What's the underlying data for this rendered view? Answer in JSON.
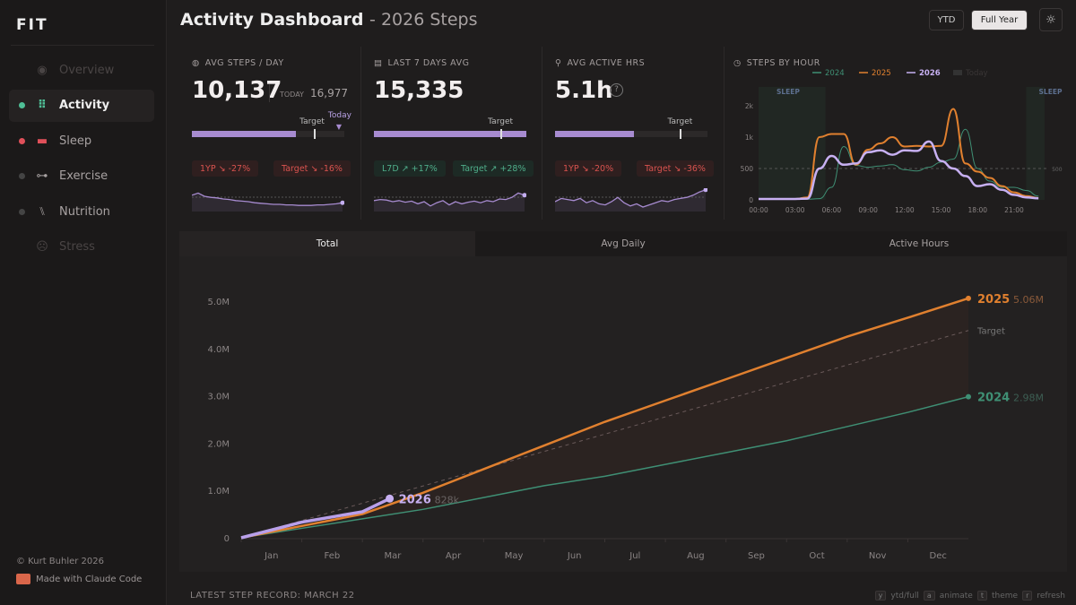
{
  "app": {
    "logo": "FIT",
    "footer_copyright": "© Kurt Buhler 2026",
    "footer_made": "Made with Claude Code"
  },
  "nav": [
    {
      "label": "Overview",
      "icon": "eye-icon",
      "dot": "",
      "state": "dim"
    },
    {
      "label": "Activity",
      "icon": "footprints-icon",
      "dot": "#4fbf96",
      "state": "active"
    },
    {
      "label": "Sleep",
      "icon": "bed-icon",
      "dot": "#e0505a",
      "state": "normal"
    },
    {
      "label": "Exercise",
      "icon": "dumbbell-icon",
      "dot": "#444",
      "state": "normal"
    },
    {
      "label": "Nutrition",
      "icon": "utensils-icon",
      "dot": "#444",
      "state": "normal"
    },
    {
      "label": "Stress",
      "icon": "face-icon",
      "dot": "",
      "state": "dim"
    }
  ],
  "header": {
    "title": "Activity Dashboard",
    "subtitle": "- 2026 Steps",
    "ytd": "YTD",
    "full_year": "Full Year",
    "theme_icon": "sun-icon"
  },
  "colors": {
    "purple": "#a78bd0",
    "orange": "#e0802f",
    "green": "#3f8f74",
    "red": "#d9534f"
  },
  "kpis": [
    {
      "label": "AVG STEPS / DAY",
      "icon": "gauge-icon",
      "value": "10,137",
      "today_label": "TODAY",
      "today_value": "16,977",
      "progress": 0.68,
      "target_pos": 0.8,
      "today_pos": 0.97,
      "target_label": "Target",
      "today_marker": "Today",
      "badges": [
        {
          "text": "1YP ↘ -27%",
          "type": "bad"
        },
        {
          "text": "Target ↘ -16%",
          "type": "bad"
        }
      ],
      "spark": [
        62,
        66,
        60,
        58,
        57,
        55,
        54,
        52,
        51,
        50,
        48,
        47,
        46,
        45,
        45,
        44,
        44,
        43,
        43,
        43,
        44,
        44,
        45,
        46,
        48
      ]
    },
    {
      "label": "LAST 7 DAYS AVG",
      "icon": "calendar-icon",
      "value": "15,335",
      "progress": 1.0,
      "target_pos": 0.83,
      "target_label": "Target",
      "badges": [
        {
          "text": "L7D ↗ +17%",
          "type": "good"
        },
        {
          "text": "Target ↗ +28%",
          "type": "good"
        }
      ],
      "spark": [
        52,
        54,
        53,
        50,
        52,
        49,
        51,
        46,
        50,
        42,
        48,
        52,
        44,
        50,
        46,
        49,
        51,
        48,
        52,
        50,
        55,
        54,
        58,
        66,
        62
      ]
    },
    {
      "label": "AVG ACTIVE HRS",
      "icon": "walking-icon",
      "value": "5.1h",
      "help": "?",
      "progress": 0.52,
      "target_pos": 0.82,
      "target_label": "Target",
      "badges": [
        {
          "text": "1YP ↘ -20%",
          "type": "bad"
        },
        {
          "text": "Target ↘ -36%",
          "type": "bad"
        }
      ],
      "spark": [
        50,
        56,
        54,
        52,
        56,
        48,
        52,
        46,
        44,
        50,
        58,
        48,
        42,
        46,
        40,
        44,
        48,
        52,
        50,
        54,
        56,
        58,
        62,
        68,
        72
      ]
    }
  ],
  "hourly": {
    "title": "STEPS BY HOUR",
    "icon": "clock-icon",
    "legend": [
      "2024",
      "2025",
      "2026",
      "Today"
    ],
    "sleep_label": "SLEEP",
    "x_ticks": [
      "00:00",
      "03:00",
      "06:00",
      "09:00",
      "12:00",
      "15:00",
      "18:00",
      "21:00"
    ],
    "y_ticks": [
      "0",
      "500",
      "1k",
      "2k"
    ],
    "ref_label": "500",
    "series": {
      "2024": [
        10,
        10,
        10,
        10,
        10,
        20,
        200,
        850,
        550,
        520,
        540,
        560,
        480,
        460,
        520,
        600,
        650,
        1250,
        500,
        300,
        200,
        200,
        150,
        60
      ],
      "2025": [
        15,
        15,
        15,
        15,
        40,
        1000,
        1100,
        1100,
        560,
        800,
        900,
        1000,
        850,
        860,
        850,
        860,
        1900,
        580,
        450,
        350,
        220,
        120,
        60,
        30
      ],
      "2026": [
        15,
        15,
        15,
        15,
        20,
        500,
        700,
        560,
        580,
        760,
        790,
        720,
        790,
        780,
        930,
        620,
        500,
        380,
        220,
        250,
        160,
        80,
        40,
        25
      ]
    }
  },
  "tabs": [
    "Total",
    "Avg Daily",
    "Active Hours"
  ],
  "chart_data": {
    "type": "line",
    "y_ticks": [
      "0",
      "1.0M",
      "2.0M",
      "3.0M",
      "4.0M",
      "5.0M"
    ],
    "ylim": [
      0,
      5200000
    ],
    "x_ticks": [
      "Jan",
      "Feb",
      "Mar",
      "Apr",
      "May",
      "Jun",
      "Jul",
      "Aug",
      "Sep",
      "Oct",
      "Nov",
      "Dec"
    ],
    "series": [
      {
        "name": "2025",
        "total_label": "5.06M",
        "month_end": [
          0,
          250000,
          500000,
          950000,
          1450000,
          1950000,
          2450000,
          2900000,
          3350000,
          3800000,
          4250000,
          4650000,
          5060000
        ]
      },
      {
        "name": "2024",
        "total_label": "2.98M",
        "month_end": [
          0,
          200000,
          400000,
          600000,
          850000,
          1100000,
          1300000,
          1550000,
          1800000,
          2050000,
          2350000,
          2650000,
          2980000
        ]
      },
      {
        "name": "2026",
        "total_label": "828k",
        "points": [
          [
            0,
            0
          ],
          [
            1,
            330000
          ],
          [
            2,
            550000
          ],
          [
            2.45,
            828000
          ]
        ]
      },
      {
        "name": "Target",
        "month_end": [
          0,
          4380000
        ],
        "dashed": true
      }
    ]
  },
  "footer": {
    "record": "LATEST STEP RECORD: MARCH 22",
    "shortcuts": [
      {
        "key": "y",
        "label": "ytd/full"
      },
      {
        "key": "a",
        "label": "animate"
      },
      {
        "key": "t",
        "label": "theme"
      },
      {
        "key": "r",
        "label": "refresh"
      }
    ]
  }
}
